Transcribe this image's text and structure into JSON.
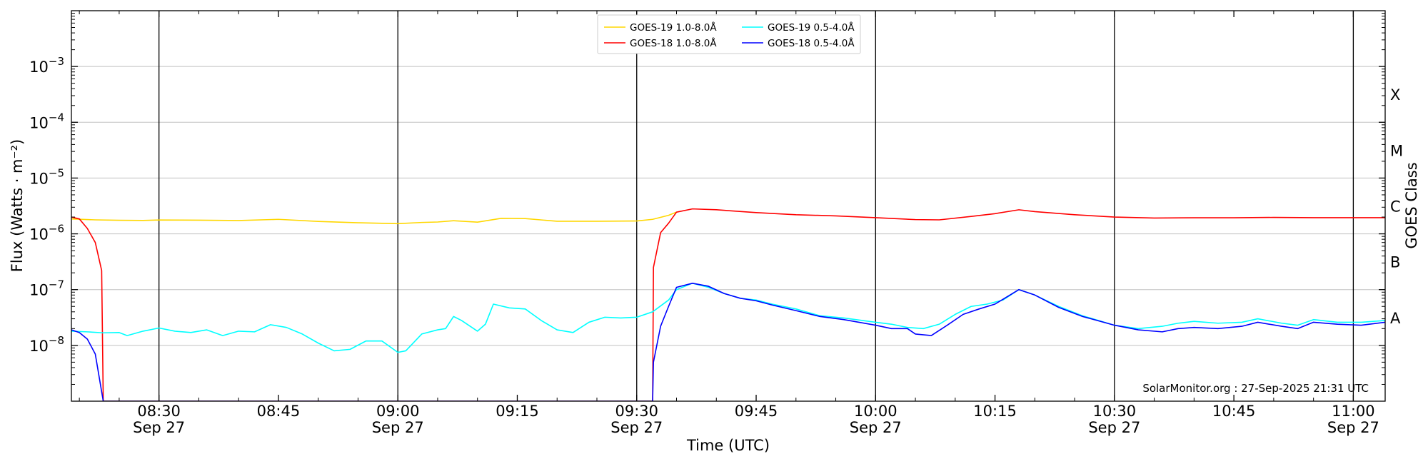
{
  "chart_data": {
    "type": "line",
    "title": "",
    "xlabel": "Time (UTC)",
    "ylabel": "Flux (Watts · m⁻²)",
    "y2label": "GOES Class",
    "yscale": "log",
    "xlim": [
      "08:19",
      "11:04"
    ],
    "ylim": [
      1e-09,
      0.01
    ],
    "grid": "horizontal",
    "legend_position": "top-center",
    "x_ticks": [
      {
        "time": "08:30",
        "label": "08:30",
        "sub": "Sep 27",
        "vline": true
      },
      {
        "time": "08:45",
        "label": "08:45",
        "sub": "",
        "vline": false
      },
      {
        "time": "09:00",
        "label": "09:00",
        "sub": "Sep 27",
        "vline": true
      },
      {
        "time": "09:15",
        "label": "09:15",
        "sub": "",
        "vline": false
      },
      {
        "time": "09:30",
        "label": "09:30",
        "sub": "Sep 27",
        "vline": true
      },
      {
        "time": "09:45",
        "label": "09:45",
        "sub": "",
        "vline": false
      },
      {
        "time": "10:00",
        "label": "10:00",
        "sub": "Sep 27",
        "vline": true
      },
      {
        "time": "10:15",
        "label": "10:15",
        "sub": "",
        "vline": false
      },
      {
        "time": "10:30",
        "label": "10:30",
        "sub": "Sep 27",
        "vline": true
      },
      {
        "time": "10:45",
        "label": "10:45",
        "sub": "",
        "vline": false
      },
      {
        "time": "11:00",
        "label": "11:00",
        "sub": "Sep 27",
        "vline": true
      }
    ],
    "y_ticks": [
      {
        "value": 1e-08,
        "base": "10",
        "exp": "−8"
      },
      {
        "value": 1e-07,
        "base": "10",
        "exp": "−7"
      },
      {
        "value": 1e-06,
        "base": "10",
        "exp": "−6"
      },
      {
        "value": 1e-05,
        "base": "10",
        "exp": "−5"
      },
      {
        "value": 0.0001,
        "base": "10",
        "exp": "−4"
      },
      {
        "value": 0.001,
        "base": "10",
        "exp": "−3"
      }
    ],
    "goes_classes": [
      {
        "label": "A",
        "value": 3.16e-08
      },
      {
        "label": "B",
        "value": 3.16e-07
      },
      {
        "label": "C",
        "value": 3.16e-06
      },
      {
        "label": "M",
        "value": 3.16e-05
      },
      {
        "label": "X",
        "value": 0.000316
      }
    ],
    "series": [
      {
        "name": "GOES-19 1.0-8.0Å",
        "color": "#ffd700",
        "points": [
          [
            "08:19",
            1.85e-06
          ],
          [
            "08:22",
            1.78e-06
          ],
          [
            "08:25",
            1.75e-06
          ],
          [
            "08:28",
            1.74e-06
          ],
          [
            "08:30",
            1.77e-06
          ],
          [
            "08:35",
            1.76e-06
          ],
          [
            "08:40",
            1.73e-06
          ],
          [
            "08:45",
            1.82e-06
          ],
          [
            "08:50",
            1.67e-06
          ],
          [
            "08:55",
            1.58e-06
          ],
          [
            "09:00",
            1.52e-06
          ],
          [
            "09:03",
            1.6e-06
          ],
          [
            "09:05",
            1.63e-06
          ],
          [
            "09:07",
            1.72e-06
          ],
          [
            "09:10",
            1.62e-06
          ],
          [
            "09:13",
            1.9e-06
          ],
          [
            "09:16",
            1.88e-06
          ],
          [
            "09:20",
            1.68e-06
          ],
          [
            "09:25",
            1.68e-06
          ],
          [
            "09:30",
            1.7e-06
          ],
          [
            "09:32",
            1.82e-06
          ],
          [
            "09:34",
            2.15e-06
          ],
          [
            "09:35",
            2.45e-06
          ]
        ]
      },
      {
        "name": "GOES-18 1.0-8.0Å",
        "color": "#ff0000",
        "points": [
          [
            "08:19",
            2e-06
          ],
          [
            "08:20",
            1.85e-06
          ],
          [
            "08:21",
            1.25e-06
          ],
          [
            "08:22",
            7e-07
          ],
          [
            "08:22.8",
            2.2e-07
          ],
          [
            "08:23",
            1e-09
          ],
          [
            "09:32",
            1e-09
          ],
          [
            "09:32.1",
            2.5e-07
          ],
          [
            "09:33",
            1.05e-06
          ],
          [
            "09:34",
            1.55e-06
          ],
          [
            "09:35",
            2.45e-06
          ],
          [
            "09:37",
            2.8e-06
          ],
          [
            "09:40",
            2.7e-06
          ],
          [
            "09:45",
            2.4e-06
          ],
          [
            "09:50",
            2.2e-06
          ],
          [
            "09:55",
            2.1e-06
          ],
          [
            "10:00",
            1.95e-06
          ],
          [
            "10:05",
            1.8e-06
          ],
          [
            "10:08",
            1.78e-06
          ],
          [
            "10:12",
            2.05e-06
          ],
          [
            "10:15",
            2.3e-06
          ],
          [
            "10:18",
            2.7e-06
          ],
          [
            "10:20",
            2.5e-06
          ],
          [
            "10:25",
            2.2e-06
          ],
          [
            "10:30",
            2e-06
          ],
          [
            "10:35",
            1.92e-06
          ],
          [
            "10:40",
            1.94e-06
          ],
          [
            "10:45",
            1.94e-06
          ],
          [
            "10:50",
            1.97e-06
          ],
          [
            "10:55",
            1.95e-06
          ],
          [
            "11:00",
            1.95e-06
          ],
          [
            "11:04",
            1.95e-06
          ]
        ]
      },
      {
        "name": "GOES-19 0.5-4.0Å",
        "color": "#00ffff",
        "points": [
          [
            "08:19",
            1.8e-08
          ],
          [
            "08:21",
            1.75e-08
          ],
          [
            "08:23",
            1.68e-08
          ],
          [
            "08:25",
            1.7e-08
          ],
          [
            "08:26",
            1.5e-08
          ],
          [
            "08:28",
            1.8e-08
          ],
          [
            "08:30",
            2.05e-08
          ],
          [
            "08:32",
            1.8e-08
          ],
          [
            "08:34",
            1.7e-08
          ],
          [
            "08:36",
            1.9e-08
          ],
          [
            "08:38",
            1.5e-08
          ],
          [
            "08:40",
            1.8e-08
          ],
          [
            "08:42",
            1.75e-08
          ],
          [
            "08:44",
            2.35e-08
          ],
          [
            "08:46",
            2.1e-08
          ],
          [
            "08:48",
            1.6e-08
          ],
          [
            "08:50",
            1.1e-08
          ],
          [
            "08:52",
            8e-09
          ],
          [
            "08:54",
            8.5e-09
          ],
          [
            "08:56",
            1.2e-08
          ],
          [
            "08:58",
            1.2e-08
          ],
          [
            "09:00",
            7.5e-09
          ],
          [
            "09:01",
            8e-09
          ],
          [
            "09:03",
            1.6e-08
          ],
          [
            "09:05",
            1.9e-08
          ],
          [
            "09:06",
            2e-08
          ],
          [
            "09:07",
            3.3e-08
          ],
          [
            "09:08",
            2.8e-08
          ],
          [
            "09:10",
            1.8e-08
          ],
          [
            "09:11",
            2.4e-08
          ],
          [
            "09:12",
            5.5e-08
          ],
          [
            "09:14",
            4.7e-08
          ],
          [
            "09:16",
            4.5e-08
          ],
          [
            "09:18",
            2.8e-08
          ],
          [
            "09:20",
            1.9e-08
          ],
          [
            "09:22",
            1.7e-08
          ],
          [
            "09:24",
            2.6e-08
          ],
          [
            "09:26",
            3.2e-08
          ],
          [
            "09:28",
            3.1e-08
          ],
          [
            "09:30",
            3.2e-08
          ],
          [
            "09:32",
            4e-08
          ],
          [
            "09:34",
            6.5e-08
          ],
          [
            "09:35",
            1e-07
          ],
          [
            "09:37",
            1.3e-07
          ],
          [
            "09:39",
            1.1e-07
          ],
          [
            "09:41",
            8.5e-08
          ],
          [
            "09:43",
            7e-08
          ],
          [
            "09:45",
            6.5e-08
          ],
          [
            "09:47",
            5.5e-08
          ],
          [
            "09:50",
            4.5e-08
          ],
          [
            "09:53",
            3.4e-08
          ],
          [
            "09:56",
            3.1e-08
          ],
          [
            "10:00",
            2.6e-08
          ],
          [
            "10:02",
            2.4e-08
          ],
          [
            "10:04",
            2.1e-08
          ],
          [
            "10:06",
            2e-08
          ],
          [
            "10:08",
            2.4e-08
          ],
          [
            "10:10",
            3.6e-08
          ],
          [
            "10:12",
            5e-08
          ],
          [
            "10:14",
            5.5e-08
          ],
          [
            "10:16",
            6.5e-08
          ],
          [
            "10:18",
            1e-07
          ],
          [
            "10:20",
            8e-08
          ],
          [
            "10:23",
            5e-08
          ],
          [
            "10:26",
            3.4e-08
          ],
          [
            "10:30",
            2.3e-08
          ],
          [
            "10:33",
            2e-08
          ],
          [
            "10:36",
            2.2e-08
          ],
          [
            "10:38",
            2.5e-08
          ],
          [
            "10:40",
            2.7e-08
          ],
          [
            "10:43",
            2.5e-08
          ],
          [
            "10:46",
            2.6e-08
          ],
          [
            "10:48",
            3e-08
          ],
          [
            "10:51",
            2.5e-08
          ],
          [
            "10:53",
            2.3e-08
          ],
          [
            "10:55",
            2.9e-08
          ],
          [
            "10:58",
            2.6e-08
          ],
          [
            "11:01",
            2.6e-08
          ],
          [
            "11:04",
            2.8e-08
          ]
        ]
      },
      {
        "name": "GOES-18 0.5-4.0Å",
        "color": "#0000ff",
        "points": [
          [
            "08:19",
            1.9e-08
          ],
          [
            "08:20",
            1.7e-08
          ],
          [
            "08:21",
            1.3e-08
          ],
          [
            "08:22",
            7e-09
          ],
          [
            "08:23",
            1e-09
          ],
          [
            "09:32",
            1e-09
          ],
          [
            "09:32.1",
            5e-09
          ],
          [
            "09:33",
            2.2e-08
          ],
          [
            "09:34",
            5e-08
          ],
          [
            "09:35",
            1.1e-07
          ],
          [
            "09:37",
            1.3e-07
          ],
          [
            "09:39",
            1.15e-07
          ],
          [
            "09:41",
            8.5e-08
          ],
          [
            "09:43",
            7e-08
          ],
          [
            "09:45",
            6.3e-08
          ],
          [
            "09:47",
            5.3e-08
          ],
          [
            "09:50",
            4.2e-08
          ],
          [
            "09:53",
            3.3e-08
          ],
          [
            "09:56",
            2.9e-08
          ],
          [
            "10:00",
            2.3e-08
          ],
          [
            "10:02",
            2e-08
          ],
          [
            "10:04",
            2e-08
          ],
          [
            "10:05",
            1.6e-08
          ],
          [
            "10:07",
            1.5e-08
          ],
          [
            "10:09",
            2.3e-08
          ],
          [
            "10:11",
            3.6e-08
          ],
          [
            "10:13",
            4.5e-08
          ],
          [
            "10:15",
            5.5e-08
          ],
          [
            "10:18",
            1e-07
          ],
          [
            "10:20",
            8e-08
          ],
          [
            "10:23",
            4.8e-08
          ],
          [
            "10:26",
            3.3e-08
          ],
          [
            "10:30",
            2.3e-08
          ],
          [
            "10:33",
            1.9e-08
          ],
          [
            "10:36",
            1.75e-08
          ],
          [
            "10:38",
            2e-08
          ],
          [
            "10:40",
            2.1e-08
          ],
          [
            "10:43",
            2e-08
          ],
          [
            "10:46",
            2.2e-08
          ],
          [
            "10:48",
            2.6e-08
          ],
          [
            "10:51",
            2.2e-08
          ],
          [
            "10:53",
            2e-08
          ],
          [
            "10:55",
            2.6e-08
          ],
          [
            "10:58",
            2.4e-08
          ],
          [
            "11:01",
            2.3e-08
          ],
          [
            "11:04",
            2.6e-08
          ]
        ]
      }
    ],
    "legend": [
      {
        "name": "GOES-19 1.0-8.0Å",
        "color": "#ffd700"
      },
      {
        "name": "GOES-19 0.5-4.0Å",
        "color": "#00ffff"
      },
      {
        "name": "GOES-18 1.0-8.0Å",
        "color": "#ff0000"
      },
      {
        "name": "GOES-18 0.5-4.0Å",
        "color": "#0000ff"
      }
    ],
    "annotation": "SolarMonitor.org : 27-Sep-2025 21:31 UTC"
  }
}
